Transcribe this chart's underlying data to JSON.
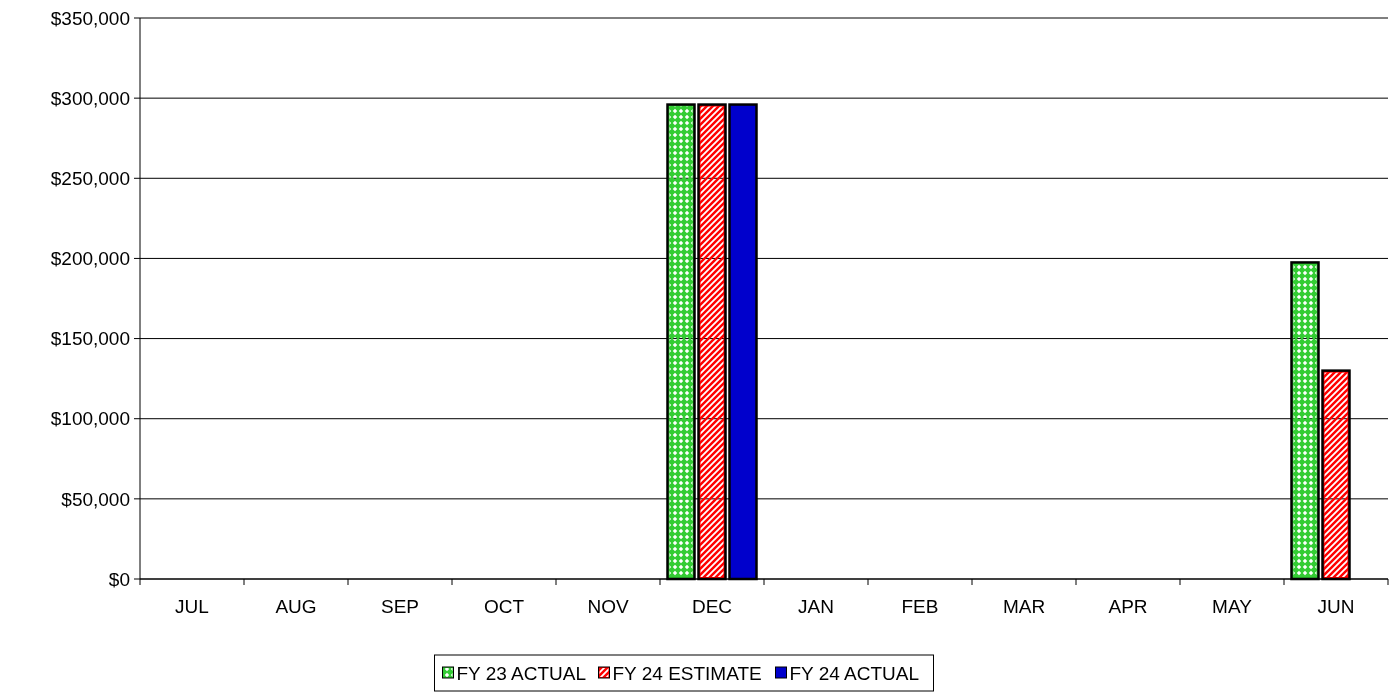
{
  "chart_data": {
    "type": "bar",
    "categories": [
      "JUL",
      "AUG",
      "SEP",
      "OCT",
      "NOV",
      "DEC",
      "JAN",
      "FEB",
      "MAR",
      "APR",
      "MAY",
      "JUN"
    ],
    "series": [
      {
        "name": "FY 23 ACTUAL",
        "color": "#33cc33",
        "values": [
          0,
          0,
          0,
          0,
          0,
          296000,
          0,
          0,
          0,
          0,
          0,
          197500
        ]
      },
      {
        "name": "FY 24 ESTIMATE",
        "color": "#ff0000",
        "values": [
          0,
          0,
          0,
          0,
          0,
          296000,
          0,
          0,
          0,
          0,
          0,
          130000
        ]
      },
      {
        "name": "FY 24 ACTUAL",
        "color": "#0000cc",
        "values": [
          null,
          null,
          null,
          null,
          null,
          296000,
          null,
          null,
          null,
          null,
          null,
          null
        ]
      }
    ],
    "ylim": [
      0,
      350000
    ],
    "yticks": [
      {
        "value": 0,
        "label": "$0"
      },
      {
        "value": 50000,
        "label": "$50,000"
      },
      {
        "value": 100000,
        "label": "$100,000"
      },
      {
        "value": 150000,
        "label": "$150,000"
      },
      {
        "value": 200000,
        "label": "$200,000"
      },
      {
        "value": 250000,
        "label": "$250,000"
      },
      {
        "value": 300000,
        "label": "$300,000"
      },
      {
        "value": 350000,
        "label": "$350,000"
      }
    ],
    "grid": "y",
    "legend": "bottom"
  }
}
